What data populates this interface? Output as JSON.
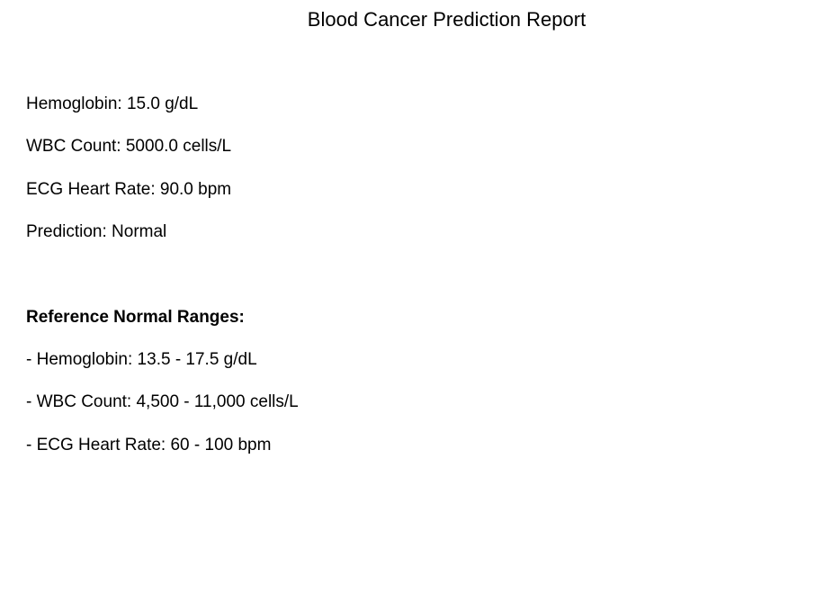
{
  "report": {
    "title": "Blood Cancer Prediction Report",
    "results": [
      "Hemoglobin: 15.0 g/dL",
      "WBC Count: 5000.0 cells/L",
      "ECG Heart Rate: 90.0 bpm",
      "Prediction: Normal"
    ],
    "reference_heading": "Reference Normal Ranges:",
    "reference_ranges": [
      "- Hemoglobin: 13.5 - 17.5 g/dL",
      "- WBC Count: 4,500 - 11,000 cells/L",
      "- ECG Heart Rate: 60 - 100 bpm"
    ]
  }
}
